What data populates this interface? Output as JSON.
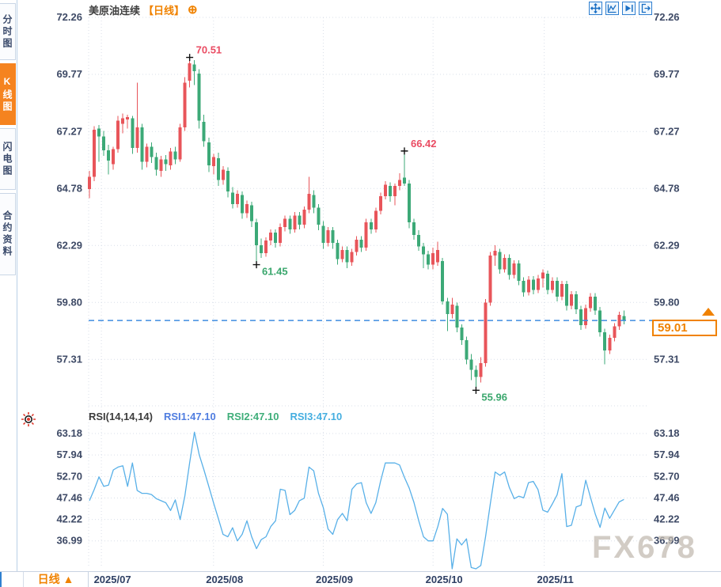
{
  "header": {
    "symbol_name": "美原油连续",
    "period_tag": "【日线】",
    "add_icon": "⊕"
  },
  "sidebar": {
    "tabs": [
      {
        "label": "分时图",
        "active": false
      },
      {
        "label": "K线图",
        "active": true
      },
      {
        "label": "闪电图",
        "active": false
      },
      {
        "label": "合约资料",
        "active": false
      }
    ]
  },
  "toolbar": {
    "icons": [
      "pan-crosshair-icon",
      "measure-chart-icon",
      "playback-icon",
      "exit-icon"
    ]
  },
  "rsi_panel": {
    "title": "RSI(14,14,14)",
    "series": [
      {
        "label": "RSI1:47.10",
        "color_key": "rsi1"
      },
      {
        "label": "RSI2:47.10",
        "color_key": "rsi2"
      },
      {
        "label": "RSI3:47.10",
        "color_key": "rsi3"
      }
    ]
  },
  "price_panel": {
    "last_price_label": "59.01"
  },
  "footer": {
    "period_button": "日线 ▲"
  },
  "watermark": "FX678",
  "colors": {
    "up": "#e8555a",
    "down": "#3ca977",
    "accent_orange": "#f08200",
    "rsi_line": "#58b0e8",
    "last_price_line": "#3f8ce0",
    "axis_text": "#3e4a66",
    "grid": "#d9dfe9",
    "annotation_high": "#ea4c63",
    "annotation_low": "#3aa76d",
    "rsi1": "#4f7de0",
    "rsi2": "#3fae7a",
    "rsi3": "#45aee0",
    "marker_cross": "#111111"
  },
  "chart_data": {
    "type": "candlestick+line",
    "title": "美原油连续 日线",
    "price_ticks": [
      {
        "label": "72.26",
        "value": 72.26
      },
      {
        "label": "69.77",
        "value": 69.77
      },
      {
        "label": "67.27",
        "value": 67.27
      },
      {
        "label": "64.78",
        "value": 64.78
      },
      {
        "label": "62.29",
        "value": 62.29
      },
      {
        "label": "59.80",
        "value": 59.8
      },
      {
        "label": "57.31",
        "value": 57.31
      }
    ],
    "rsi_ticks": [
      {
        "label": "63.18",
        "value": 63.18
      },
      {
        "label": "57.94",
        "value": 57.94
      },
      {
        "label": "52.70",
        "value": 52.7
      },
      {
        "label": "47.46",
        "value": 47.46
      },
      {
        "label": "42.22",
        "value": 42.22
      },
      {
        "label": "36.99",
        "value": 36.99
      }
    ],
    "months": [
      {
        "label": "2025/07",
        "index": 2.5
      },
      {
        "label": "2025/08",
        "index": 26
      },
      {
        "label": "2025/09",
        "index": 49
      },
      {
        "label": "2025/10",
        "index": 72
      },
      {
        "label": "2025/11",
        "index": 95.3
      }
    ],
    "last_price": 59.01,
    "annotations": [
      {
        "index": 21,
        "type": "high",
        "price": 70.51,
        "text": "70.51"
      },
      {
        "index": 35,
        "type": "low",
        "price": 61.45,
        "text": "61.45"
      },
      {
        "index": 66,
        "type": "high",
        "price": 66.42,
        "text": "66.42"
      },
      {
        "index": 81,
        "type": "low",
        "price": 55.96,
        "text": "55.96"
      }
    ],
    "candles": [
      [
        64.75,
        65.55,
        64.35,
        65.3
      ],
      [
        65.3,
        67.5,
        65.1,
        67.35
      ],
      [
        67.4,
        67.55,
        65.95,
        67.05
      ],
      [
        67.05,
        67.3,
        66.2,
        66.45
      ],
      [
        66.45,
        66.7,
        65.4,
        66.0
      ],
      [
        65.85,
        66.6,
        65.6,
        66.5
      ],
      [
        66.5,
        67.95,
        66.35,
        67.75
      ],
      [
        67.6,
        68.05,
        67.2,
        67.85
      ],
      [
        67.8,
        68.0,
        67.4,
        67.9
      ],
      [
        67.85,
        67.95,
        66.3,
        66.55
      ],
      [
        66.55,
        69.4,
        66.35,
        67.45
      ],
      [
        67.45,
        67.6,
        65.6,
        65.95
      ],
      [
        65.95,
        66.75,
        65.7,
        66.6
      ],
      [
        66.6,
        66.8,
        65.9,
        66.15
      ],
      [
        66.15,
        66.35,
        65.35,
        65.6
      ],
      [
        65.55,
        66.2,
        65.3,
        66.05
      ],
      [
        66.05,
        66.25,
        65.55,
        65.85
      ],
      [
        65.8,
        66.55,
        65.6,
        66.4
      ],
      [
        66.4,
        66.6,
        65.85,
        66.05
      ],
      [
        66.05,
        67.6,
        65.95,
        67.45
      ],
      [
        67.45,
        69.65,
        67.3,
        69.4
      ],
      [
        69.5,
        70.51,
        69.2,
        70.25
      ],
      [
        70.2,
        70.4,
        69.3,
        69.9
      ],
      [
        69.8,
        70.0,
        67.4,
        67.75
      ],
      [
        67.7,
        68.0,
        66.6,
        66.85
      ],
      [
        66.8,
        67.0,
        65.5,
        65.8
      ],
      [
        65.75,
        66.3,
        65.4,
        66.15
      ],
      [
        66.1,
        66.35,
        64.9,
        65.15
      ],
      [
        65.15,
        65.75,
        64.95,
        65.6
      ],
      [
        65.55,
        65.7,
        64.4,
        64.65
      ],
      [
        64.6,
        64.85,
        63.9,
        64.1
      ],
      [
        64.1,
        64.7,
        63.95,
        64.55
      ],
      [
        64.5,
        64.65,
        63.45,
        63.7
      ],
      [
        63.7,
        64.25,
        63.5,
        64.1
      ],
      [
        64.05,
        64.2,
        63.1,
        63.35
      ],
      [
        63.3,
        63.45,
        61.45,
        62.3
      ],
      [
        62.3,
        62.6,
        61.75,
        61.95
      ],
      [
        61.95,
        62.65,
        61.8,
        62.5
      ],
      [
        62.5,
        63.0,
        62.3,
        62.85
      ],
      [
        62.85,
        63.0,
        62.2,
        62.4
      ],
      [
        62.4,
        63.25,
        62.25,
        63.1
      ],
      [
        63.1,
        63.6,
        62.9,
        63.45
      ],
      [
        63.45,
        63.6,
        62.8,
        63.0
      ],
      [
        63.0,
        63.75,
        62.85,
        63.6
      ],
      [
        63.6,
        63.75,
        63.0,
        63.2
      ],
      [
        63.2,
        64.0,
        63.05,
        63.85
      ],
      [
        63.85,
        65.3,
        63.7,
        64.55
      ],
      [
        64.5,
        64.7,
        63.7,
        63.95
      ],
      [
        63.95,
        64.1,
        62.95,
        63.2
      ],
      [
        63.15,
        63.35,
        62.15,
        62.4
      ],
      [
        62.4,
        63.1,
        62.25,
        62.95
      ],
      [
        62.95,
        63.1,
        62.15,
        62.4
      ],
      [
        62.4,
        62.55,
        61.45,
        61.7
      ],
      [
        61.7,
        62.25,
        61.55,
        62.1
      ],
      [
        62.1,
        62.25,
        61.3,
        61.55
      ],
      [
        61.55,
        62.15,
        61.4,
        62.0
      ],
      [
        62.0,
        62.7,
        61.85,
        62.55
      ],
      [
        62.55,
        62.7,
        62.0,
        62.2
      ],
      [
        62.2,
        63.45,
        62.05,
        63.3
      ],
      [
        63.3,
        63.45,
        62.8,
        63.0
      ],
      [
        63.0,
        63.95,
        62.85,
        63.8
      ],
      [
        63.8,
        64.6,
        63.65,
        64.45
      ],
      [
        64.45,
        65.1,
        64.3,
        64.95
      ],
      [
        64.9,
        65.05,
        64.2,
        64.45
      ],
      [
        64.45,
        65.0,
        64.05,
        64.9
      ],
      [
        64.9,
        65.45,
        64.7,
        65.15
      ],
      [
        65.25,
        66.42,
        64.9,
        65.0
      ],
      [
        65.0,
        65.15,
        63.05,
        63.3
      ],
      [
        63.3,
        63.45,
        62.55,
        62.75
      ],
      [
        62.75,
        62.95,
        62.05,
        62.25
      ],
      [
        62.25,
        62.4,
        61.3,
        61.9
      ],
      [
        61.9,
        62.05,
        61.25,
        61.45
      ],
      [
        61.45,
        62.2,
        61.25,
        61.95
      ],
      [
        61.55,
        62.45,
        61.4,
        62.1
      ],
      [
        61.6,
        61.75,
        59.7,
        59.85
      ],
      [
        59.85,
        60.0,
        58.55,
        59.3
      ],
      [
        59.3,
        60.0,
        59.1,
        59.7
      ],
      [
        59.65,
        59.8,
        58.5,
        58.7
      ],
      [
        58.7,
        58.85,
        57.95,
        58.15
      ],
      [
        58.15,
        58.3,
        57.1,
        57.3
      ],
      [
        57.3,
        57.55,
        56.4,
        56.85
      ],
      [
        56.85,
        57.05,
        55.96,
        56.55
      ],
      [
        56.55,
        57.4,
        56.3,
        57.15
      ],
      [
        57.15,
        59.95,
        57.0,
        59.8
      ],
      [
        59.8,
        62.0,
        59.65,
        61.85
      ],
      [
        61.85,
        62.3,
        61.4,
        62.05
      ],
      [
        62.0,
        62.15,
        61.05,
        61.25
      ],
      [
        61.25,
        61.9,
        61.1,
        61.75
      ],
      [
        61.75,
        61.9,
        60.8,
        61.0
      ],
      [
        61.0,
        61.65,
        60.85,
        61.5
      ],
      [
        61.5,
        61.65,
        60.55,
        60.75
      ],
      [
        60.75,
        60.9,
        60.05,
        60.25
      ],
      [
        60.25,
        60.95,
        60.1,
        60.8
      ],
      [
        60.8,
        60.95,
        60.15,
        60.35
      ],
      [
        60.35,
        61.0,
        60.2,
        60.85
      ],
      [
        60.85,
        61.25,
        60.45,
        61.1
      ],
      [
        61.05,
        61.2,
        60.15,
        60.35
      ],
      [
        60.35,
        60.9,
        60.2,
        60.75
      ],
      [
        60.75,
        60.9,
        59.85,
        60.05
      ],
      [
        60.05,
        60.75,
        59.9,
        60.6
      ],
      [
        60.6,
        60.75,
        59.45,
        59.65
      ],
      [
        59.65,
        60.3,
        59.5,
        60.15
      ],
      [
        60.15,
        60.3,
        59.3,
        59.5
      ],
      [
        59.5,
        59.65,
        58.6,
        58.8
      ],
      [
        58.8,
        59.7,
        58.65,
        59.55
      ],
      [
        59.55,
        60.2,
        59.4,
        60.05
      ],
      [
        60.05,
        60.2,
        59.25,
        59.45
      ],
      [
        59.45,
        59.6,
        58.3,
        58.5
      ],
      [
        58.5,
        58.65,
        57.1,
        57.7
      ],
      [
        57.7,
        58.4,
        57.55,
        58.25
      ],
      [
        58.25,
        58.9,
        58.1,
        58.75
      ],
      [
        58.75,
        59.4,
        58.6,
        59.25
      ],
      [
        59.2,
        59.45,
        58.85,
        59.01
      ]
    ],
    "rsi": [
      46.8,
      49.5,
      52.6,
      50.3,
      50.6,
      54.3,
      55.0,
      55.3,
      50.3,
      56.0,
      49.3,
      48.6,
      48.6,
      48.3,
      47.3,
      46.8,
      46.3,
      44.4,
      47.0,
      42.2,
      48.0,
      56.0,
      63.5,
      58.0,
      54.3,
      50.3,
      46.3,
      42.5,
      38.6,
      38.0,
      40.2,
      37.0,
      38.6,
      41.9,
      38.0,
      35.1,
      37.3,
      38.0,
      40.5,
      41.9,
      49.6,
      49.3,
      43.4,
      44.4,
      46.8,
      47.4,
      55.0,
      54.1,
      48.6,
      45.1,
      39.9,
      38.6,
      42.2,
      43.7,
      41.9,
      49.6,
      50.9,
      51.2,
      46.3,
      43.7,
      46.3,
      51.5,
      56.0,
      56.0,
      56.0,
      55.5,
      52.5,
      49.9,
      46.4,
      41.9,
      38.0,
      37.0,
      37.0,
      40.5,
      44.9,
      43.5,
      29.8,
      37.5,
      36.0,
      37.5,
      30.5,
      29.8,
      31.0,
      38.0,
      46.0,
      53.8,
      53.0,
      53.8,
      50.0,
      47.3,
      47.9,
      47.5,
      51.2,
      51.5,
      49.5,
      44.5,
      44.0,
      46.0,
      48.2,
      53.4,
      40.5,
      40.8,
      45.3,
      45.7,
      51.8,
      47.6,
      43.5,
      40.3,
      45.0,
      42.5,
      44.5,
      46.5,
      47.1
    ]
  }
}
